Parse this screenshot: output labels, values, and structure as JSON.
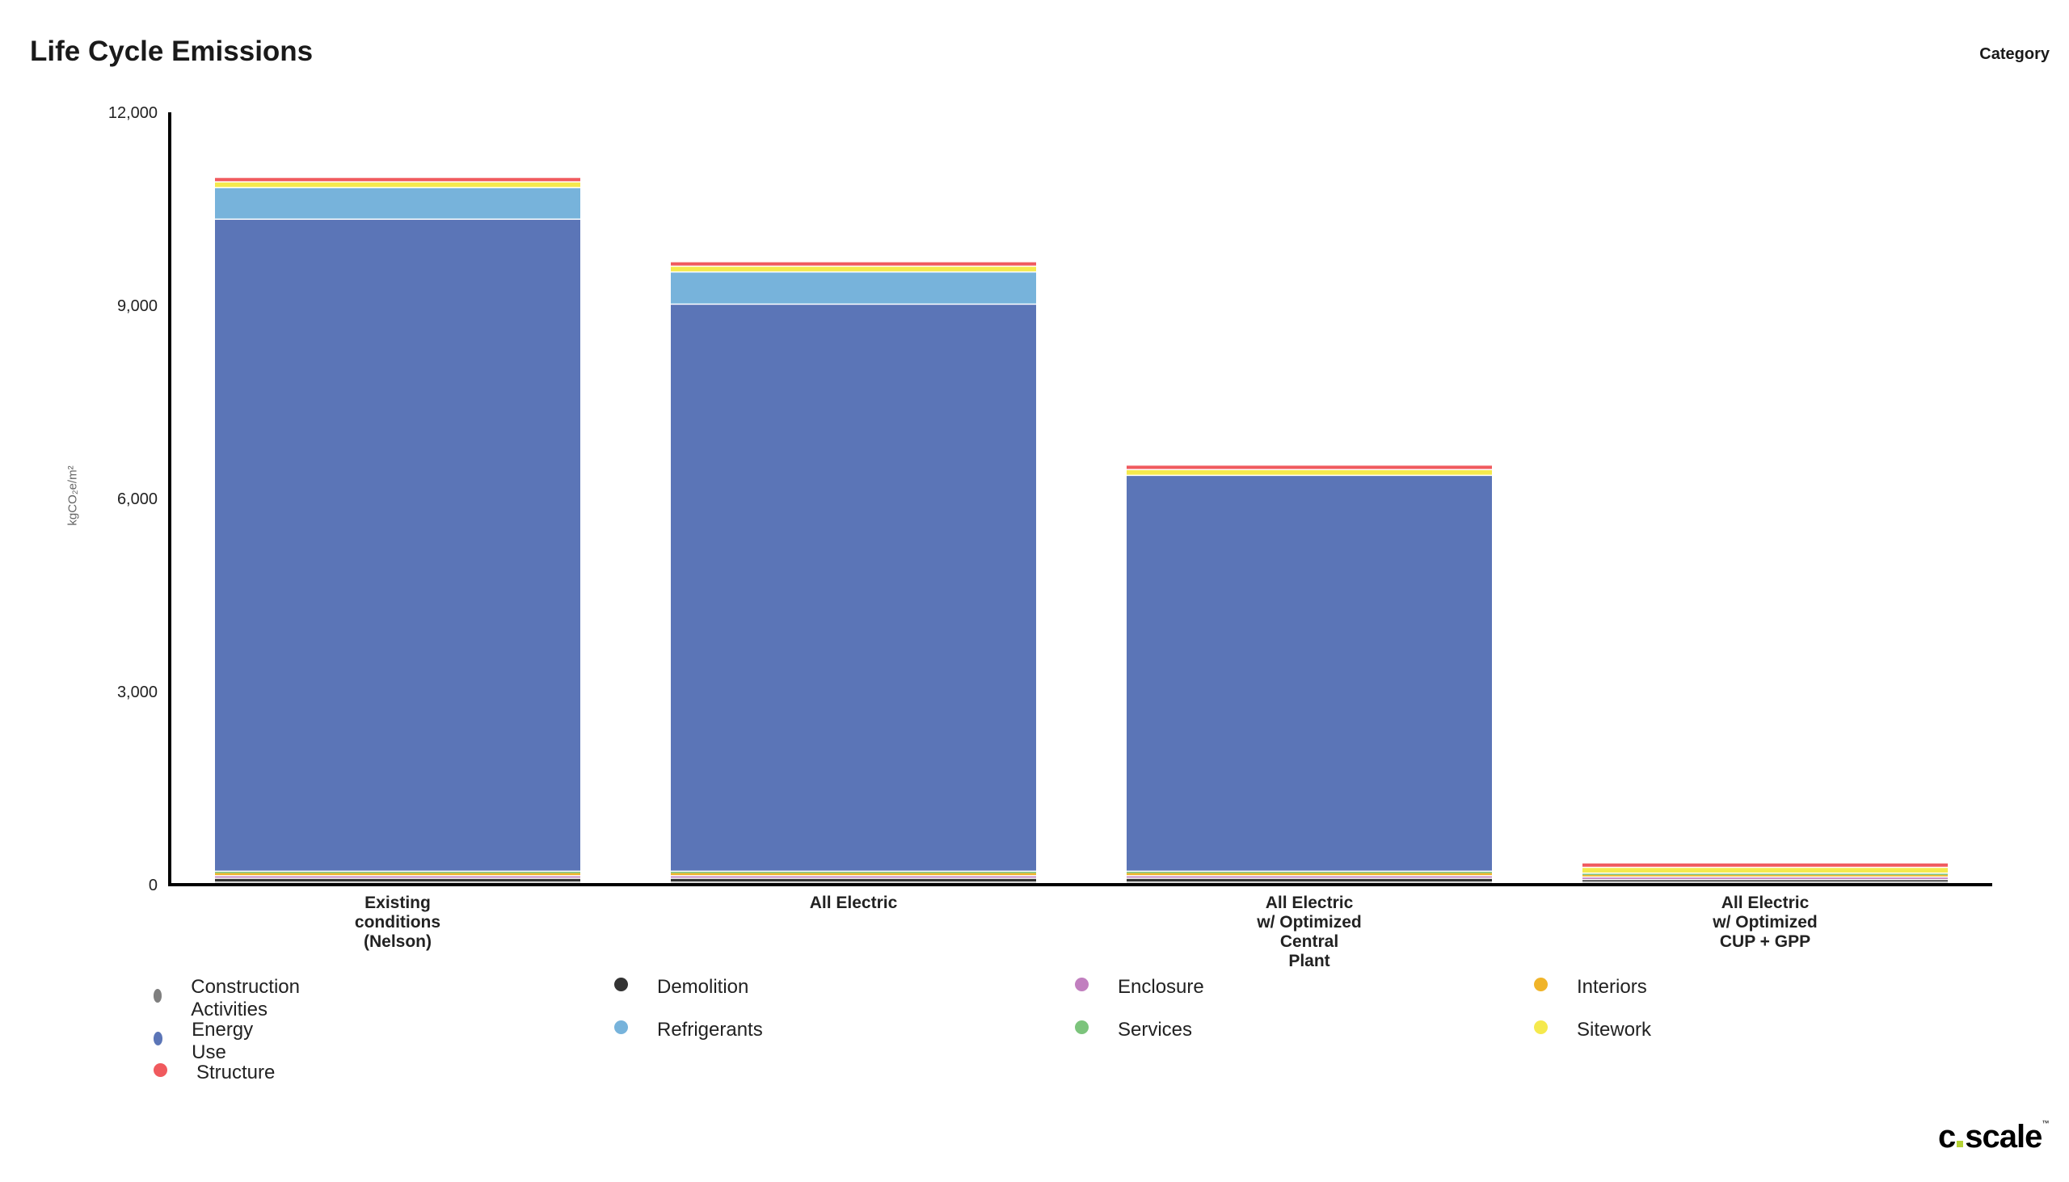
{
  "title": "Life Cycle Emissions",
  "legend_title": "Category",
  "logo_text": "c.scale",
  "chart_data": {
    "type": "bar",
    "stacked": true,
    "title": "Life Cycle Emissions",
    "xlabel": "",
    "ylabel": "kgCO₂e/m²",
    "ylim": [
      0,
      12000
    ],
    "yticks": [
      0,
      3000,
      6000,
      9000,
      12000
    ],
    "ytick_labels": [
      "0",
      "3,000",
      "6,000",
      "9,000",
      "12,000"
    ],
    "grid": false,
    "legend_position": "bottom",
    "categories": [
      [
        "Existing",
        "conditions",
        "(Nelson)"
      ],
      [
        "All Electric"
      ],
      [
        "All Electric",
        "w/ Optimized",
        "Central",
        "Plant"
      ],
      [
        "All Electric",
        "w/ Optimized",
        "CUP + GPP"
      ]
    ],
    "series": [
      {
        "name": "Construction Activities",
        "color": "#7f7f7f",
        "values": [
          30,
          30,
          30,
          30
        ]
      },
      {
        "name": "Demolition",
        "color": "#333333",
        "values": [
          60,
          60,
          60,
          40
        ]
      },
      {
        "name": "Enclosure",
        "color": "#c17fbf",
        "values": [
          40,
          40,
          40,
          40
        ]
      },
      {
        "name": "Interiors",
        "color": "#f0b429",
        "values": [
          50,
          50,
          50,
          40
        ]
      },
      {
        "name": "Services",
        "color": "#7cc47c",
        "values": [
          20,
          20,
          20,
          20
        ]
      },
      {
        "name": "Energy Use",
        "color": "#5b75b7",
        "values": [
          10130,
          8810,
          6150,
          0
        ]
      },
      {
        "name": "Refrigerants",
        "color": "#77b3db",
        "values": [
          490,
          500,
          0,
          0
        ]
      },
      {
        "name": "Sitework",
        "color": "#f5e94d",
        "values": [
          90,
          90,
          90,
          90
        ]
      },
      {
        "name": "Structure",
        "color": "#f05a5e",
        "values": [
          70,
          70,
          70,
          70
        ]
      }
    ],
    "legend_order": [
      "Construction Activities",
      "Demolition",
      "Enclosure",
      "Interiors",
      "Energy Use",
      "Refrigerants",
      "Services",
      "Sitework",
      "Structure"
    ]
  }
}
